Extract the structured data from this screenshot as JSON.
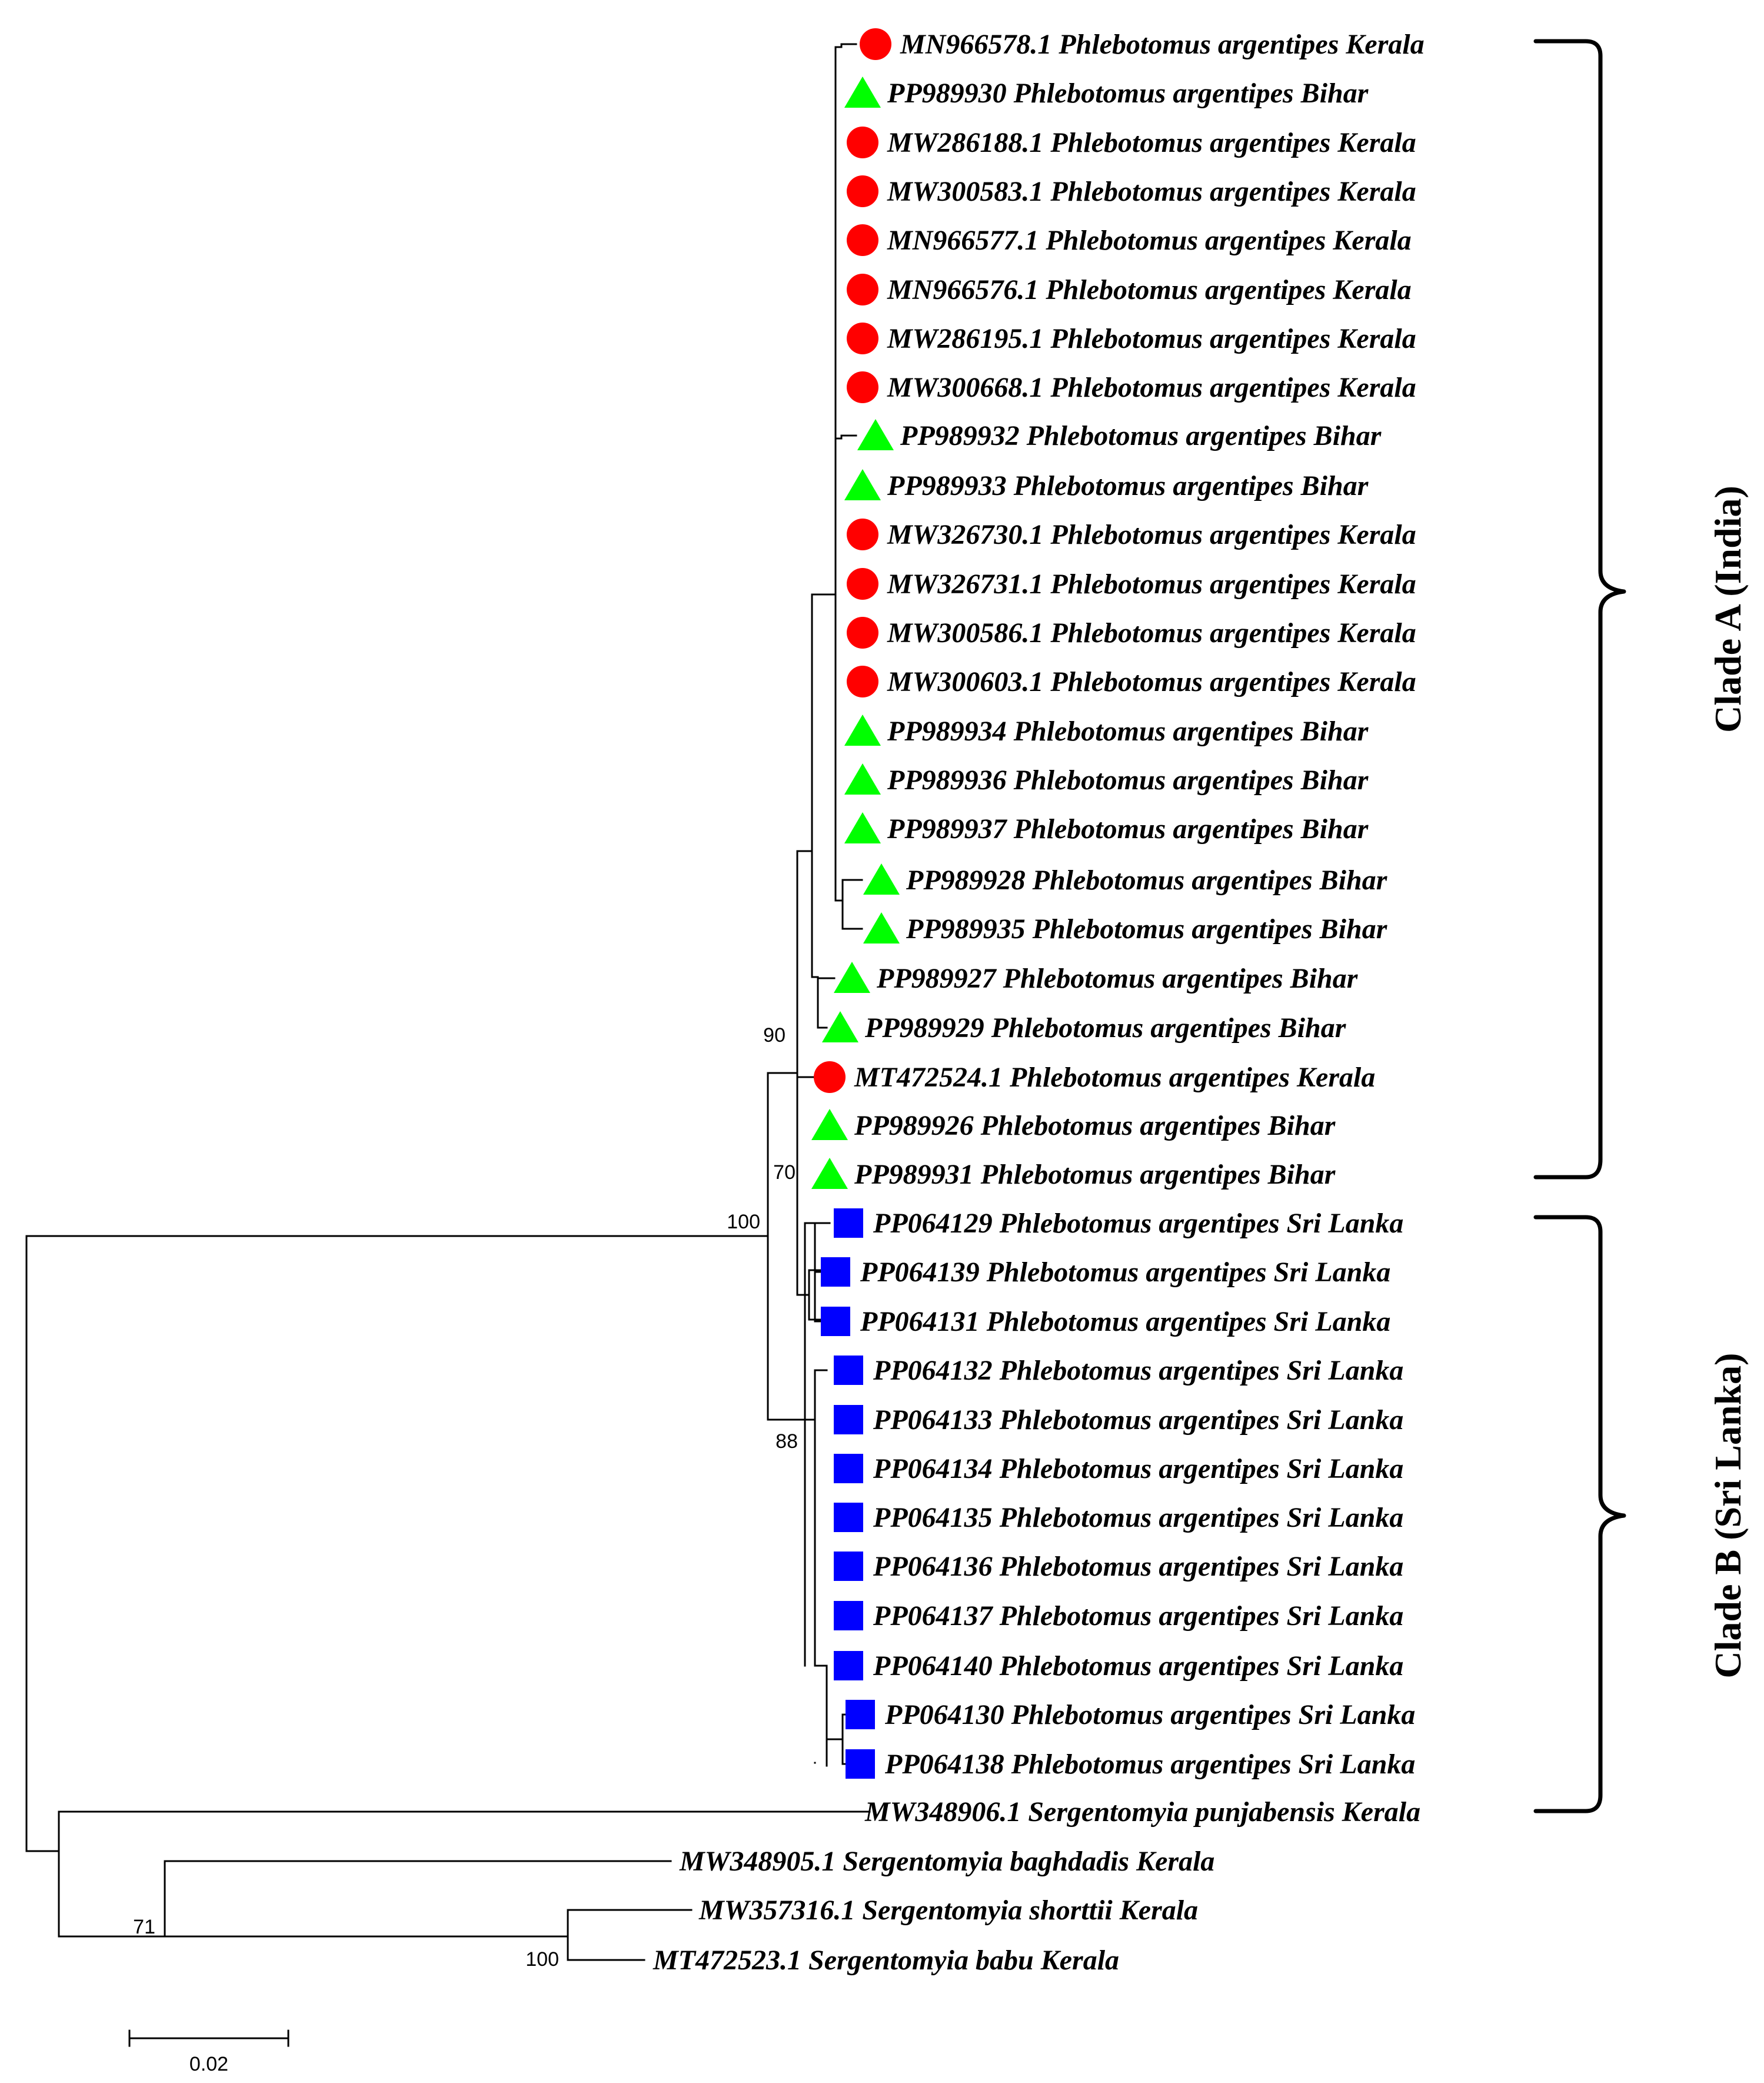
{
  "figure": {
    "type": "phylogenetic-tree",
    "colors": {
      "kerala": "#ff0000",
      "bihar": "#00ff00",
      "sri_lanka": "#0000ff",
      "outgroup": "#000000",
      "line": "#000000"
    },
    "marker_shapes": {
      "kerala": "circle",
      "bihar": "triangle",
      "sri_lanka": "square",
      "outgroup": "none"
    }
  },
  "taxa": [
    {
      "label": "MN966578.1 Phlebotomus argentipes Kerala",
      "group": "kerala"
    },
    {
      "label": "PP989930 Phlebotomus argentipes Bihar",
      "group": "bihar"
    },
    {
      "label": "MW286188.1 Phlebotomus argentipes Kerala",
      "group": "kerala"
    },
    {
      "label": "MW300583.1 Phlebotomus argentipes Kerala",
      "group": "kerala"
    },
    {
      "label": "MN966577.1 Phlebotomus argentipes Kerala",
      "group": "kerala"
    },
    {
      "label": "MN966576.1 Phlebotomus argentipes Kerala",
      "group": "kerala"
    },
    {
      "label": "MW286195.1 Phlebotomus argentipes Kerala",
      "group": "kerala"
    },
    {
      "label": "MW300668.1 Phlebotomus argentipes Kerala",
      "group": "kerala"
    },
    {
      "label": "PP989932 Phlebotomus argentipes Bihar",
      "group": "bihar"
    },
    {
      "label": "PP989933 Phlebotomus argentipes Bihar",
      "group": "bihar"
    },
    {
      "label": "MW326730.1 Phlebotomus argentipes Kerala",
      "group": "kerala"
    },
    {
      "label": "MW326731.1 Phlebotomus argentipes Kerala",
      "group": "kerala"
    },
    {
      "label": "MW300586.1 Phlebotomus argentipes Kerala",
      "group": "kerala"
    },
    {
      "label": "MW300603.1 Phlebotomus argentipes Kerala",
      "group": "kerala"
    },
    {
      "label": "PP989934 Phlebotomus argentipes Bihar",
      "group": "bihar"
    },
    {
      "label": "PP989936 Phlebotomus argentipes Bihar",
      "group": "bihar"
    },
    {
      "label": "PP989937 Phlebotomus argentipes Bihar",
      "group": "bihar"
    },
    {
      "label": "PP989928 Phlebotomus argentipes Bihar",
      "group": "bihar"
    },
    {
      "label": "PP989935 Phlebotomus argentipes Bihar",
      "group": "bihar"
    },
    {
      "label": "PP989927 Phlebotomus argentipes Bihar",
      "group": "bihar"
    },
    {
      "label": "PP989929 Phlebotomus argentipes Bihar",
      "group": "bihar"
    },
    {
      "label": "MT472524.1 Phlebotomus argentipes Kerala",
      "group": "kerala"
    },
    {
      "label": "PP989926 Phlebotomus argentipes Bihar",
      "group": "bihar"
    },
    {
      "label": "PP989931 Phlebotomus argentipes Bihar",
      "group": "bihar"
    },
    {
      "label": "PP064129 Phlebotomus argentipes Sri Lanka",
      "group": "sri_lanka"
    },
    {
      "label": "PP064139 Phlebotomus argentipes Sri Lanka",
      "group": "sri_lanka"
    },
    {
      "label": "PP064131 Phlebotomus argentipes Sri Lanka",
      "group": "sri_lanka"
    },
    {
      "label": "PP064132 Phlebotomus argentipes Sri Lanka",
      "group": "sri_lanka"
    },
    {
      "label": "PP064133 Phlebotomus argentipes Sri Lanka",
      "group": "sri_lanka"
    },
    {
      "label": "PP064134 Phlebotomus argentipes Sri Lanka",
      "group": "sri_lanka"
    },
    {
      "label": "PP064135 Phlebotomus argentipes Sri Lanka",
      "group": "sri_lanka"
    },
    {
      "label": "PP064136 Phlebotomus argentipes Sri Lanka",
      "group": "sri_lanka"
    },
    {
      "label": "PP064137 Phlebotomus argentipes Sri Lanka",
      "group": "sri_lanka"
    },
    {
      "label": "PP064140 Phlebotomus argentipes Sri Lanka",
      "group": "sri_lanka"
    },
    {
      "label": "PP064130 Phlebotomus argentipes Sri Lanka",
      "group": "sri_lanka"
    },
    {
      "label": "PP064138 Phlebotomus argentipes Sri Lanka",
      "group": "sri_lanka"
    },
    {
      "label": "MW348906.1 Sergentomyia punjabensis Kerala",
      "group": "outgroup"
    },
    {
      "label": "MW348905.1 Sergentomyia baghdadis Kerala",
      "group": "outgroup"
    },
    {
      "label": "MW357316.1 Sergentomyia shorttii Kerala",
      "group": "outgroup"
    },
    {
      "label": "MT472523.1 Sergentomyia babu Kerala",
      "group": "outgroup"
    }
  ],
  "bootstrap": {
    "clade_a_node": "90",
    "bihar_pair_node": "70",
    "ingroup_node": "100",
    "clade_b_node": "88",
    "outgroup_node": "71",
    "shorttii_babu_node": "100"
  },
  "clades": {
    "a": "Clade A (India)",
    "b": "Clade B (Sri Lanka)"
  },
  "scale_bar": {
    "value": 0.02,
    "label": "0.02"
  }
}
